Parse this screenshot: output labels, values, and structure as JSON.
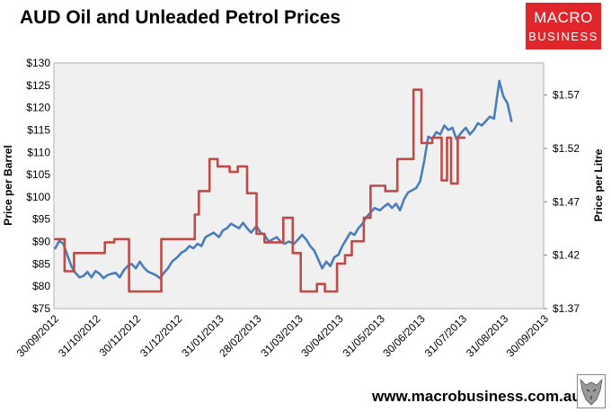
{
  "title": "AUD Oil and Unleaded Petrol Prices",
  "logo": {
    "line1": "MACRO",
    "line2": "BUSINESS"
  },
  "footer": "www.macrobusiness.com.au",
  "colors": {
    "oil": "#4a7ebb",
    "petrol": "#be4b48",
    "plot_bg": "#f0f0f0",
    "logo_bg": "#e0262b"
  },
  "chart_data": {
    "type": "line",
    "title": "AUD Oil and Unleaded Petrol Prices",
    "grid": false,
    "legend": "none",
    "x_range": [
      "2012-09-30",
      "2013-09-30"
    ],
    "x_ticks": [
      "30/09/2012",
      "31/10/2012",
      "30/11/2012",
      "31/12/2012",
      "31/01/2013",
      "28/02/2013",
      "31/03/2013",
      "30/04/2013",
      "31/05/2013",
      "30/06/2013",
      "31/07/2013",
      "31/08/2013",
      "30/09/2013"
    ],
    "y_left": {
      "label": "Price per Barrel",
      "range": [
        75,
        130
      ],
      "ticks": [
        "$75",
        "$80",
        "$85",
        "$90",
        "$95",
        "$100",
        "$105",
        "$110",
        "$115",
        "$120",
        "$125",
        "$130"
      ]
    },
    "y_right": {
      "label": "Price per Litre",
      "range": [
        1.37,
        1.6
      ],
      "ticks": [
        "$1.37",
        "$1.42",
        "$1.47",
        "$1.52",
        "$1.57"
      ]
    },
    "series": [
      {
        "axis": "left",
        "color": "#4a7ebb",
        "points": [
          [
            "2012-10-01",
            88.5
          ],
          [
            "2012-10-04",
            90.2
          ],
          [
            "2012-10-07",
            89.5
          ],
          [
            "2012-10-10",
            87.0
          ],
          [
            "2012-10-13",
            84.5
          ],
          [
            "2012-10-16",
            83.0
          ],
          [
            "2012-10-19",
            82.0
          ],
          [
            "2012-10-22",
            82.3
          ],
          [
            "2012-10-25",
            83.2
          ],
          [
            "2012-10-28",
            82.0
          ],
          [
            "2012-10-31",
            83.4
          ],
          [
            "2012-11-03",
            82.8
          ],
          [
            "2012-11-06",
            81.8
          ],
          [
            "2012-11-09",
            82.5
          ],
          [
            "2012-11-12",
            82.8
          ],
          [
            "2012-11-15",
            83.0
          ],
          [
            "2012-11-18",
            82.0
          ],
          [
            "2012-11-21",
            83.5
          ],
          [
            "2012-11-24",
            84.5
          ],
          [
            "2012-11-27",
            85.0
          ],
          [
            "2012-11-30",
            84.0
          ],
          [
            "2012-12-03",
            85.5
          ],
          [
            "2012-12-06",
            84.2
          ],
          [
            "2012-12-09",
            83.3
          ],
          [
            "2012-12-12",
            82.9
          ],
          [
            "2012-12-15",
            82.5
          ],
          [
            "2012-12-18",
            81.8
          ],
          [
            "2012-12-21",
            83.0
          ],
          [
            "2012-12-24",
            84.0
          ],
          [
            "2012-12-27",
            85.5
          ],
          [
            "2012-12-31",
            86.5
          ],
          [
            "2013-01-03",
            87.5
          ],
          [
            "2013-01-06",
            88.0
          ],
          [
            "2013-01-09",
            89.0
          ],
          [
            "2013-01-12",
            88.5
          ],
          [
            "2013-01-15",
            89.5
          ],
          [
            "2013-01-18",
            89.0
          ],
          [
            "2013-01-21",
            91.0
          ],
          [
            "2013-01-24",
            91.5
          ],
          [
            "2013-01-27",
            92.0
          ],
          [
            "2013-01-31",
            91.0
          ],
          [
            "2013-02-03",
            92.5
          ],
          [
            "2013-02-06",
            93.0
          ],
          [
            "2013-02-09",
            94.0
          ],
          [
            "2013-02-12",
            93.5
          ],
          [
            "2013-02-15",
            93.0
          ],
          [
            "2013-02-18",
            94.2
          ],
          [
            "2013-02-21",
            93.0
          ],
          [
            "2013-02-24",
            92.0
          ],
          [
            "2013-02-28",
            93.5
          ],
          [
            "2013-03-03",
            92.0
          ],
          [
            "2013-03-06",
            91.5
          ],
          [
            "2013-03-09",
            90.0
          ],
          [
            "2013-03-12",
            90.5
          ],
          [
            "2013-03-15",
            91.0
          ],
          [
            "2013-03-18",
            90.0
          ],
          [
            "2013-03-21",
            89.5
          ],
          [
            "2013-03-24",
            90.0
          ],
          [
            "2013-03-28",
            89.5
          ],
          [
            "2013-03-31",
            90.5
          ],
          [
            "2013-04-03",
            91.5
          ],
          [
            "2013-04-06",
            90.5
          ],
          [
            "2013-04-09",
            89.0
          ],
          [
            "2013-04-12",
            88.0
          ],
          [
            "2013-04-15",
            86.0
          ],
          [
            "2013-04-18",
            84.0
          ],
          [
            "2013-04-21",
            85.5
          ],
          [
            "2013-04-24",
            84.5
          ],
          [
            "2013-04-27",
            86.5
          ],
          [
            "2013-04-30",
            87.0
          ],
          [
            "2013-05-03",
            89.0
          ],
          [
            "2013-05-06",
            90.5
          ],
          [
            "2013-05-09",
            92.0
          ],
          [
            "2013-05-12",
            91.5
          ],
          [
            "2013-05-15",
            93.0
          ],
          [
            "2013-05-18",
            94.0
          ],
          [
            "2013-05-21",
            95.5
          ],
          [
            "2013-05-24",
            96.5
          ],
          [
            "2013-05-27",
            97.5
          ],
          [
            "2013-05-31",
            97.0
          ],
          [
            "2013-06-03",
            97.8
          ],
          [
            "2013-06-06",
            98.5
          ],
          [
            "2013-06-09",
            97.5
          ],
          [
            "2013-06-12",
            98.5
          ],
          [
            "2013-06-15",
            97.0
          ],
          [
            "2013-06-18",
            99.5
          ],
          [
            "2013-06-21",
            101.0
          ],
          [
            "2013-06-24",
            101.5
          ],
          [
            "2013-06-27",
            102.0
          ],
          [
            "2013-06-30",
            103.5
          ],
          [
            "2013-07-03",
            108.0
          ],
          [
            "2013-07-06",
            113.5
          ],
          [
            "2013-07-09",
            113.0
          ],
          [
            "2013-07-12",
            114.5
          ],
          [
            "2013-07-15",
            114.0
          ],
          [
            "2013-07-18",
            116.0
          ],
          [
            "2013-07-21",
            115.0
          ],
          [
            "2013-07-24",
            115.5
          ],
          [
            "2013-07-27",
            113.0
          ],
          [
            "2013-07-31",
            114.5
          ],
          [
            "2013-08-03",
            115.5
          ],
          [
            "2013-08-06",
            114.0
          ],
          [
            "2013-08-09",
            115.0
          ],
          [
            "2013-08-12",
            116.5
          ],
          [
            "2013-08-15",
            116.0
          ],
          [
            "2013-08-18",
            117.0
          ],
          [
            "2013-08-21",
            118.0
          ],
          [
            "2013-08-24",
            117.5
          ],
          [
            "2013-08-28",
            126.0
          ],
          [
            "2013-08-31",
            122.5
          ],
          [
            "2013-09-03",
            121.0
          ],
          [
            "2013-09-06",
            117.0
          ]
        ]
      },
      {
        "axis": "right",
        "color": "#be4b48",
        "points": [
          [
            "2012-10-01",
            1.435
          ],
          [
            "2012-10-08",
            1.435
          ],
          [
            "2012-10-08",
            1.405
          ],
          [
            "2012-10-15",
            1.405
          ],
          [
            "2012-10-15",
            1.422
          ],
          [
            "2012-11-07",
            1.422
          ],
          [
            "2012-11-07",
            1.432
          ],
          [
            "2012-11-14",
            1.432
          ],
          [
            "2012-11-14",
            1.435
          ],
          [
            "2012-11-25",
            1.435
          ],
          [
            "2012-11-25",
            1.386
          ],
          [
            "2012-12-19",
            1.386
          ],
          [
            "2012-12-19",
            1.435
          ],
          [
            "2013-01-13",
            1.435
          ],
          [
            "2013-01-13",
            1.458
          ],
          [
            "2013-01-16",
            1.458
          ],
          [
            "2013-01-16",
            1.48
          ],
          [
            "2013-01-24",
            1.48
          ],
          [
            "2013-01-24",
            1.51
          ],
          [
            "2013-01-30",
            1.51
          ],
          [
            "2013-01-30",
            1.503
          ],
          [
            "2013-02-08",
            1.503
          ],
          [
            "2013-02-08",
            1.498
          ],
          [
            "2013-02-14",
            1.498
          ],
          [
            "2013-02-14",
            1.503
          ],
          [
            "2013-02-21",
            1.503
          ],
          [
            "2013-02-21",
            1.478
          ],
          [
            "2013-02-28",
            1.478
          ],
          [
            "2013-02-28",
            1.44
          ],
          [
            "2013-03-06",
            1.44
          ],
          [
            "2013-03-06",
            1.432
          ],
          [
            "2013-03-20",
            1.432
          ],
          [
            "2013-03-20",
            1.455
          ],
          [
            "2013-03-27",
            1.455
          ],
          [
            "2013-03-27",
            1.422
          ],
          [
            "2013-04-02",
            1.422
          ],
          [
            "2013-04-02",
            1.386
          ],
          [
            "2013-04-14",
            1.386
          ],
          [
            "2013-04-14",
            1.393
          ],
          [
            "2013-04-20",
            1.393
          ],
          [
            "2013-04-20",
            1.386
          ],
          [
            "2013-04-29",
            1.386
          ],
          [
            "2013-04-29",
            1.412
          ],
          [
            "2013-05-05",
            1.412
          ],
          [
            "2013-05-05",
            1.42
          ],
          [
            "2013-05-10",
            1.42
          ],
          [
            "2013-05-10",
            1.433
          ],
          [
            "2013-05-19",
            1.433
          ],
          [
            "2013-05-19",
            1.455
          ],
          [
            "2013-05-24",
            1.455
          ],
          [
            "2013-05-24",
            1.485
          ],
          [
            "2013-06-04",
            1.485
          ],
          [
            "2013-06-04",
            1.48
          ],
          [
            "2013-06-13",
            1.48
          ],
          [
            "2013-06-13",
            1.51
          ],
          [
            "2013-06-25",
            1.51
          ],
          [
            "2013-06-25",
            1.575
          ],
          [
            "2013-07-01",
            1.575
          ],
          [
            "2013-07-01",
            1.525
          ],
          [
            "2013-07-09",
            1.525
          ],
          [
            "2013-07-09",
            1.53
          ],
          [
            "2013-07-16",
            1.53
          ],
          [
            "2013-07-16",
            1.49
          ],
          [
            "2013-07-20",
            1.49
          ],
          [
            "2013-07-20",
            1.53
          ],
          [
            "2013-07-23",
            1.53
          ],
          [
            "2013-07-23",
            1.487
          ],
          [
            "2013-07-28",
            1.487
          ],
          [
            "2013-07-28",
            1.53
          ],
          [
            "2013-08-02",
            1.53
          ]
        ]
      }
    ]
  }
}
